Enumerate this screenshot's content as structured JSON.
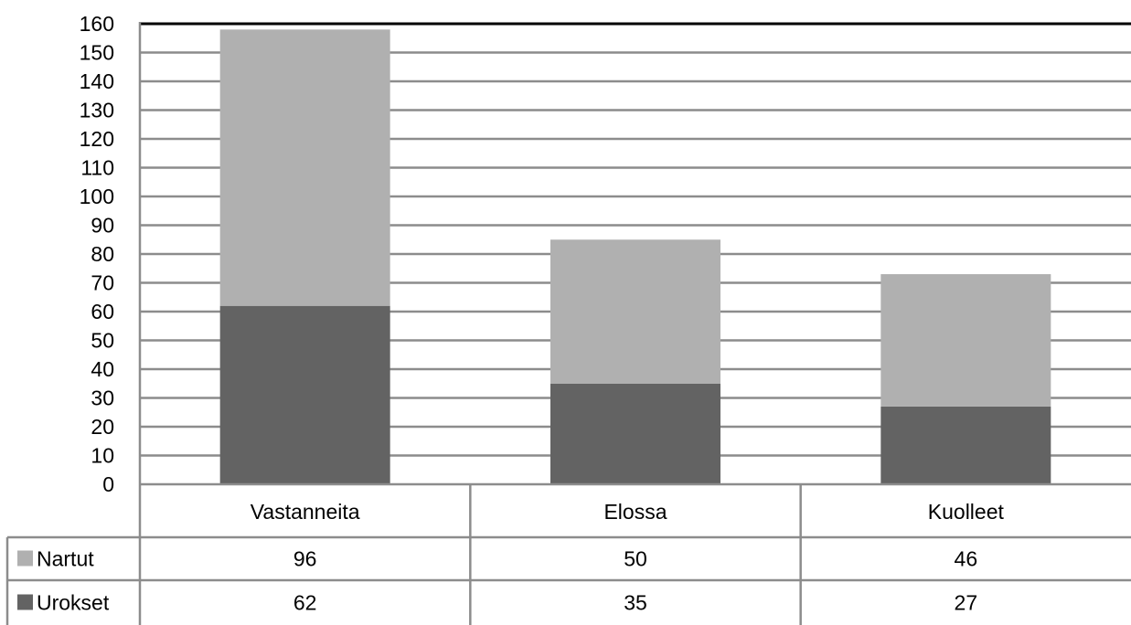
{
  "chart_data": {
    "type": "bar",
    "stacked": true,
    "categories": [
      "Vastanneita",
      "Elossa",
      "Kuolleet"
    ],
    "series": [
      {
        "name": "Urokset",
        "values": [
          62,
          35,
          27
        ],
        "color": "#636363"
      },
      {
        "name": "Nartut",
        "values": [
          96,
          50,
          46
        ],
        "color": "#b0b0b0"
      }
    ],
    "ylim": [
      0,
      160
    ],
    "yticks": [
      "0",
      "10",
      "20",
      "30",
      "40",
      "50",
      "60",
      "70",
      "80",
      "90",
      "100",
      "110",
      "120",
      "130",
      "140",
      "150",
      "160"
    ],
    "grid": true,
    "data_table": true,
    "table_rows": [
      {
        "label": "Nartut",
        "values": [
          "96",
          "50",
          "46"
        ],
        "color": "#b0b0b0"
      },
      {
        "label": "Urokset",
        "values": [
          "62",
          "35",
          "27"
        ],
        "color": "#636363"
      }
    ]
  }
}
